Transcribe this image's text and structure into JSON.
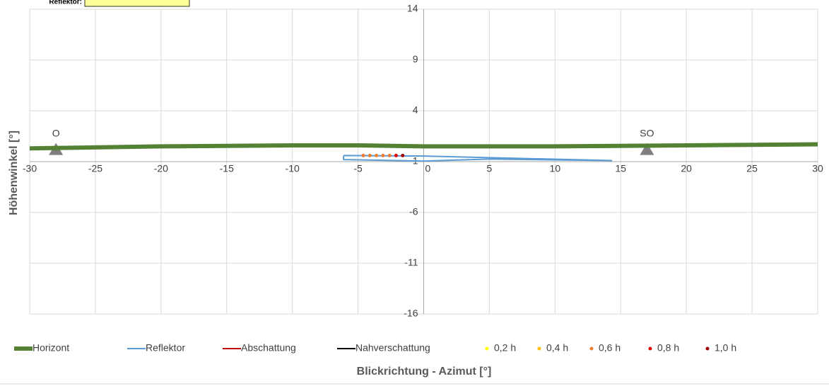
{
  "chart_data": {
    "type": "scatter",
    "corner_label": "Reflektor:",
    "x_label": "Blickrichtung - Azimut [°]",
    "y_label": "Höhenwinkel [°]",
    "xlim": [
      -30,
      30
    ],
    "ylim": [
      -16,
      14
    ],
    "xticks": [
      -30,
      -25,
      -20,
      -15,
      -10,
      -5,
      0,
      5,
      10,
      15,
      20,
      25,
      30
    ],
    "yticks": [
      14,
      9,
      4,
      -1,
      -6,
      -11,
      -16
    ],
    "x_axis_at": -1,
    "grid": true,
    "legend": "bottom",
    "annotations": [
      {
        "text": "O",
        "x": -28,
        "y": 0
      },
      {
        "text": "SO",
        "x": 17,
        "y": 0
      }
    ],
    "series": [
      {
        "name": "Horizont",
        "color": "#548235",
        "kind": "line",
        "line_width": 6,
        "x": [
          -30,
          -20,
          -10,
          -5,
          0,
          10,
          20,
          30
        ],
        "values": [
          0.3,
          0.5,
          0.6,
          0.6,
          0.5,
          0.5,
          0.6,
          0.7
        ]
      },
      {
        "name": "Reflektor",
        "color": "#5b9bd5",
        "kind": "line",
        "line_width": 2,
        "x": [
          -6.1,
          0,
          14.3,
          5,
          0,
          -6.1,
          -6.1
        ],
        "values": [
          -0.4,
          -0.45,
          -0.9,
          -0.75,
          -0.95,
          -0.8,
          -0.4
        ]
      },
      {
        "name": "Abschattung",
        "color": "#c00000",
        "kind": "line",
        "line_width": 2,
        "x": [],
        "values": []
      },
      {
        "name": "Nahverschattung",
        "color": "#000000",
        "kind": "line",
        "line_width": 2,
        "x": [],
        "values": []
      },
      {
        "name": "0,2 h",
        "color": "#ffff00",
        "kind": "dot",
        "x": [],
        "values": []
      },
      {
        "name": "0,4 h",
        "color": "#ffc000",
        "kind": "dot",
        "x": [],
        "values": []
      },
      {
        "name": "0,6 h",
        "color": "#ed7d31",
        "kind": "dot",
        "x": [
          -4.6,
          -4.1,
          -3.6,
          -3.1,
          -2.6
        ],
        "values": [
          -0.4,
          -0.4,
          -0.4,
          -0.4,
          -0.4
        ]
      },
      {
        "name": "0,8 h",
        "color": "#e00000",
        "kind": "dot",
        "x": [
          -2.1
        ],
        "values": [
          -0.4
        ]
      },
      {
        "name": "1,0 h",
        "color": "#a00000",
        "kind": "dot",
        "x": [
          -1.6
        ],
        "values": [
          -0.4
        ]
      }
    ]
  }
}
